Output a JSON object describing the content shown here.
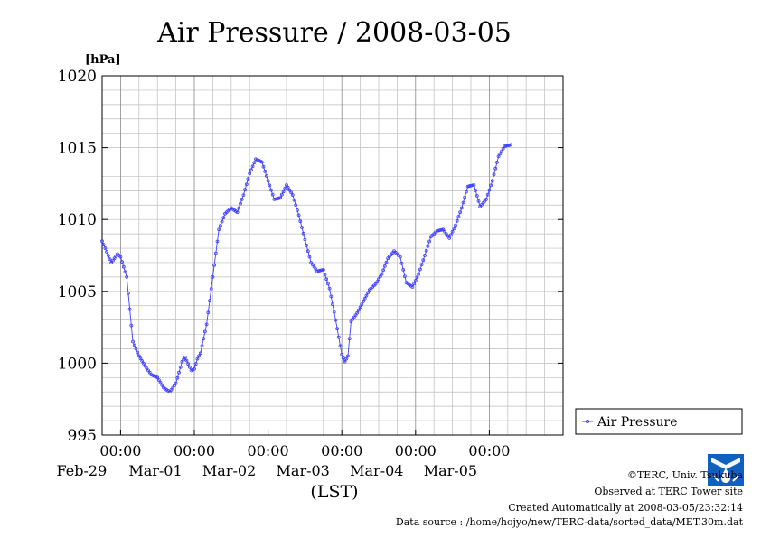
{
  "chart_data": {
    "type": "line",
    "title": "Air Pressure / 2008-03-05",
    "ylabel": "[hPa]",
    "xlabel": "(LST)",
    "ylim": [
      995,
      1020
    ],
    "yticks": [
      995,
      1000,
      1005,
      1010,
      1015,
      1020
    ],
    "grid": true,
    "legend_position": "right",
    "series_color": "#4040ff",
    "x_start": "2008-02-28 18:00",
    "x_end": "2008-03-05 24:00",
    "x_ticks": [
      {
        "time": "2008-02-29 00:00",
        "time_label": "00:00",
        "date_label": "Feb-29"
      },
      {
        "time": "2008-03-01 00:00",
        "time_label": "00:00",
        "date_label": "Mar-01"
      },
      {
        "time": "2008-03-02 00:00",
        "time_label": "00:00",
        "date_label": "Mar-02"
      },
      {
        "time": "2008-03-03 00:00",
        "time_label": "00:00",
        "date_label": "Mar-03"
      },
      {
        "time": "2008-03-04 00:00",
        "time_label": "00:00",
        "date_label": "Mar-04"
      },
      {
        "time": "2008-03-05 00:00",
        "time_label": "00:00",
        "date_label": "Mar-05"
      }
    ],
    "series": [
      {
        "name": "Air Pressure",
        "points": [
          [
            "2008-02-28 18:00",
            1008.5
          ],
          [
            "2008-02-28 21:00",
            1007.0
          ],
          [
            "2008-02-28 23:00",
            1007.6
          ],
          [
            "2008-02-29 00:00",
            1007.4
          ],
          [
            "2008-02-29 02:00",
            1006.0
          ],
          [
            "2008-02-29 04:00",
            1001.5
          ],
          [
            "2008-02-29 06:00",
            1000.5
          ],
          [
            "2008-02-29 08:00",
            999.8
          ],
          [
            "2008-02-29 10:00",
            999.2
          ],
          [
            "2008-02-29 12:00",
            999.0
          ],
          [
            "2008-02-29 14:00",
            998.3
          ],
          [
            "2008-02-29 16:00",
            998.0
          ],
          [
            "2008-02-29 18:00",
            998.6
          ],
          [
            "2008-02-29 20:00",
            1000.1
          ],
          [
            "2008-02-29 21:00",
            1000.4
          ],
          [
            "2008-02-29 23:00",
            999.5
          ],
          [
            "2008-03-01 00:00",
            999.6
          ],
          [
            "2008-03-01 01:00",
            1000.3
          ],
          [
            "2008-03-01 02:00",
            1000.7
          ],
          [
            "2008-03-01 04:00",
            1002.7
          ],
          [
            "2008-03-01 06:00",
            1006.0
          ],
          [
            "2008-03-01 08:00",
            1009.3
          ],
          [
            "2008-03-01 10:00",
            1010.4
          ],
          [
            "2008-03-01 12:00",
            1010.8
          ],
          [
            "2008-03-01 14:00",
            1010.5
          ],
          [
            "2008-03-01 16:00",
            1011.7
          ],
          [
            "2008-03-01 18:00",
            1013.2
          ],
          [
            "2008-03-01 20:00",
            1014.2
          ],
          [
            "2008-03-01 22:00",
            1014.0
          ],
          [
            "2008-03-02 00:00",
            1012.7
          ],
          [
            "2008-03-02 02:00",
            1011.4
          ],
          [
            "2008-03-02 04:00",
            1011.5
          ],
          [
            "2008-03-02 06:00",
            1012.4
          ],
          [
            "2008-03-02 08:00",
            1011.7
          ],
          [
            "2008-03-02 10:00",
            1010.3
          ],
          [
            "2008-03-02 12:00",
            1008.6
          ],
          [
            "2008-03-02 14:00",
            1007.0
          ],
          [
            "2008-03-02 16:00",
            1006.4
          ],
          [
            "2008-03-02 18:00",
            1006.5
          ],
          [
            "2008-03-02 20:00",
            1005.2
          ],
          [
            "2008-03-02 22:00",
            1003.0
          ],
          [
            "2008-03-03 00:00",
            1000.6
          ],
          [
            "2008-03-03 01:00",
            1000.1
          ],
          [
            "2008-03-03 02:00",
            1000.5
          ],
          [
            "2008-03-03 03:00",
            1002.9
          ],
          [
            "2008-03-03 05:00",
            1003.5
          ],
          [
            "2008-03-03 07:00",
            1004.3
          ],
          [
            "2008-03-03 09:00",
            1005.1
          ],
          [
            "2008-03-03 11:00",
            1005.5
          ],
          [
            "2008-03-03 13:00",
            1006.2
          ],
          [
            "2008-03-03 15:00",
            1007.3
          ],
          [
            "2008-03-03 17:00",
            1007.8
          ],
          [
            "2008-03-03 19:00",
            1007.4
          ],
          [
            "2008-03-03 21:00",
            1005.6
          ],
          [
            "2008-03-03 23:00",
            1005.3
          ],
          [
            "2008-03-04 01:00",
            1006.2
          ],
          [
            "2008-03-04 03:00",
            1007.5
          ],
          [
            "2008-03-04 05:00",
            1008.8
          ],
          [
            "2008-03-04 07:00",
            1009.2
          ],
          [
            "2008-03-04 09:00",
            1009.3
          ],
          [
            "2008-03-04 11:00",
            1008.7
          ],
          [
            "2008-03-04 13:00",
            1009.6
          ],
          [
            "2008-03-04 15:00",
            1010.8
          ],
          [
            "2008-03-04 17:00",
            1012.3
          ],
          [
            "2008-03-04 19:00",
            1012.4
          ],
          [
            "2008-03-04 21:00",
            1010.9
          ],
          [
            "2008-03-04 23:00",
            1011.4
          ],
          [
            "2008-03-05 01:00",
            1012.7
          ],
          [
            "2008-03-05 03:00",
            1014.4
          ],
          [
            "2008-03-05 05:00",
            1015.1
          ],
          [
            "2008-03-05 07:00",
            1015.2
          ]
        ]
      }
    ]
  },
  "footer": {
    "copyright": "©TERC, Univ. Tsukuba",
    "observed": "Observed at TERC Tower site",
    "created": "Created Automatically at 2008-03-05/23:32:14",
    "source": "Data source : /home/hojyo/new/TERC-data/sorted_data/MET.30m.dat"
  },
  "logo": {
    "name": "terc-logo",
    "colors": [
      "#1060c0",
      "#ffffff"
    ]
  }
}
